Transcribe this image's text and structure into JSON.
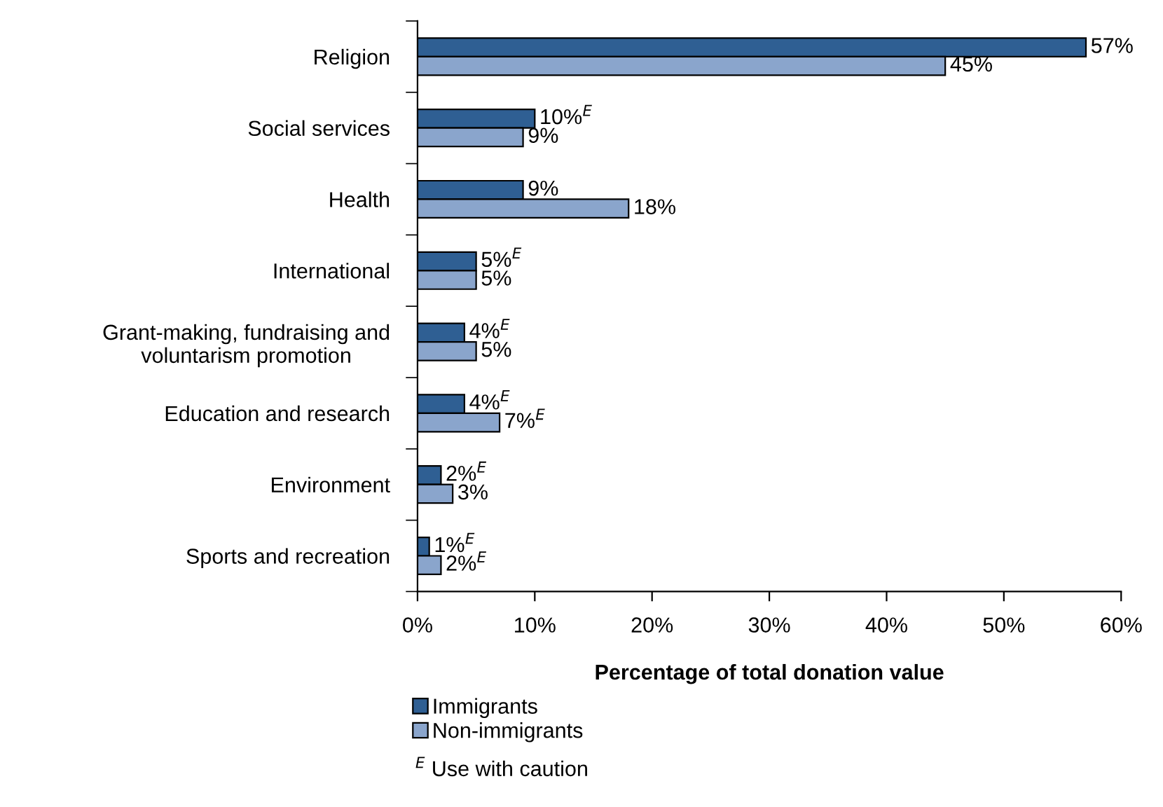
{
  "chart_data": {
    "type": "bar",
    "orientation": "horizontal",
    "categories": [
      "Religion",
      "Social services",
      "Health",
      "International",
      "Grant-making, fundraising and\nvoluntarism promotion",
      "Education and research",
      "Environment",
      "Sports and recreation"
    ],
    "series": [
      {
        "name": "Immigrants",
        "color": "#2f5f93",
        "values": [
          57,
          10,
          9,
          5,
          4,
          4,
          2,
          1
        ],
        "value_labels": [
          "57%",
          "10%$^{E}$",
          "9%",
          "5%$^{E}$",
          "4%$^{E}$",
          "4%$^{E}$",
          "2%$^{E}$",
          "1%$^{E}$"
        ]
      },
      {
        "name": "Non-immigrants",
        "color": "#8aa5cc",
        "values": [
          45,
          9,
          18,
          5,
          5,
          7,
          3,
          2
        ],
        "value_labels": [
          "45%",
          "9%",
          "18%",
          "5%",
          "5%",
          "7%$^{E}$",
          "3%",
          "2%$^{E}$"
        ]
      }
    ],
    "xlabel": "Percentage of total donation value",
    "xlim": [
      0,
      60
    ],
    "xticks": [
      {
        "value": 0,
        "label": "0%"
      },
      {
        "value": 10,
        "label": "10%"
      },
      {
        "value": 20,
        "label": "20%"
      },
      {
        "value": 30,
        "label": "30%"
      },
      {
        "value": 40,
        "label": "40%"
      },
      {
        "value": 50,
        "label": "50%"
      },
      {
        "value": 60,
        "label": "60%"
      }
    ],
    "grid": false,
    "legend": "bottom",
    "annotations": [
      "$^{E}$ Use with caution"
    ]
  }
}
